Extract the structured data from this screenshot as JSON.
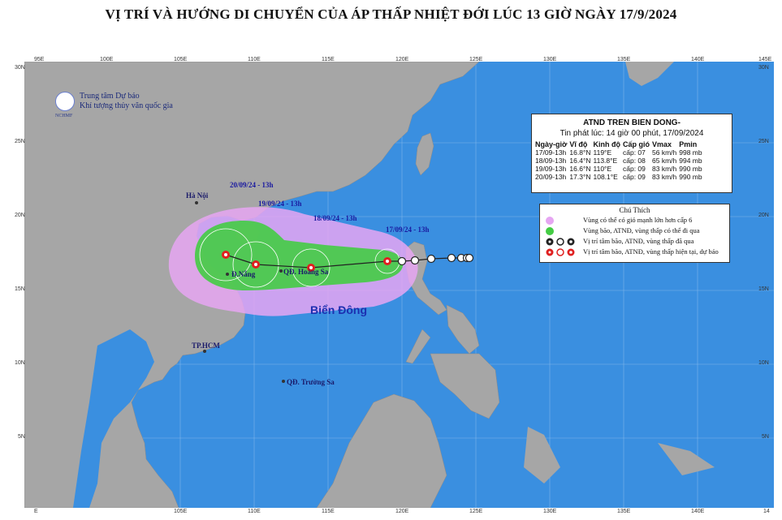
{
  "title": "VỊ TRÍ VÀ HƯỚNG DI CHUYỂN CỦA ÁP THẤP NHIỆT ĐỚI LÚC 13 GIỜ NGÀY 17/9/2024",
  "agency": {
    "line1": "Trung tâm Dự báo",
    "line2": "Khí tượng thủy văn quốc gia",
    "logo_text": "NCHMF"
  },
  "axes": {
    "lon_top": [
      "95E",
      "100E",
      "105E",
      "110E",
      "115E",
      "120E",
      "125E",
      "130E",
      "135E",
      "140E",
      "145E"
    ],
    "lon_bottom": [
      "E",
      "105E",
      "110E",
      "115E",
      "120E",
      "125E",
      "130E",
      "135E",
      "140E",
      "14"
    ],
    "lat_left": [
      "30N",
      "25N",
      "20N",
      "15N",
      "10N",
      "5N"
    ],
    "lat_right": [
      "30N",
      "25N",
      "20N",
      "15N",
      "10N",
      "5N"
    ]
  },
  "info_box": {
    "title": "ATND TREN BIEN DONG-",
    "issued": "Tin phát lúc: 14 giờ 00 phút, 17/09/2024",
    "columns": [
      "Ngày-giờ",
      "Vĩ độ",
      "Kinh độ",
      "Cấp gió",
      "Vmax",
      "Pmin"
    ],
    "rows": [
      [
        "17/09-13h",
        "16.8°N",
        "119°E",
        "cấp: 07",
        "56 km/h",
        "998 mb"
      ],
      [
        "18/09-13h",
        "16.4°N",
        "113.8°E",
        "cấp: 08",
        "65 km/h",
        "994 mb"
      ],
      [
        "19/09-13h",
        "16.6°N",
        "110°E",
        "cấp: 09",
        "83 km/h",
        "990 mb"
      ],
      [
        "20/09-13h",
        "17.3°N",
        "108.1°E",
        "cấp: 09",
        "83 km/h",
        "990 mb"
      ]
    ]
  },
  "legend": {
    "title": "Chú Thích",
    "items": [
      {
        "text": "Vùng có thể có gió mạnh lớn hơn cấp 6",
        "color": "#e0a0f0"
      },
      {
        "text": "Vùng bão, ATNĐ, vùng thấp có thể đi qua",
        "color": "#44cc44"
      },
      {
        "text": "Vị trí tâm bão, ATNĐ, vùng thấp đã qua",
        "color": "#222222"
      },
      {
        "text": "Vị trí tâm bão, ATNĐ, vùng thấp hiện tại, dự báo",
        "color": "#e02020"
      }
    ]
  },
  "labels": {
    "d1": "17/09/24 - 13h",
    "d2": "18/09/24 - 13h",
    "d3": "19/09/24 - 13h",
    "d4": "20/09/24 - 13h",
    "hanoi": "Hà Nội",
    "danang": "Đ.Nẵng",
    "hoangsa": "QĐ. Hoàng Sa",
    "hcm": "TP.HCM",
    "truongsa": "QĐ. Trường Sa",
    "sea": "Biển Đông"
  },
  "colors": {
    "ocean": "#3a8fe0",
    "land": "#a6a6a6",
    "wind_zone": "#e0a0f0",
    "storm_zone": "#44cc44",
    "current_center": "#e02020"
  }
}
